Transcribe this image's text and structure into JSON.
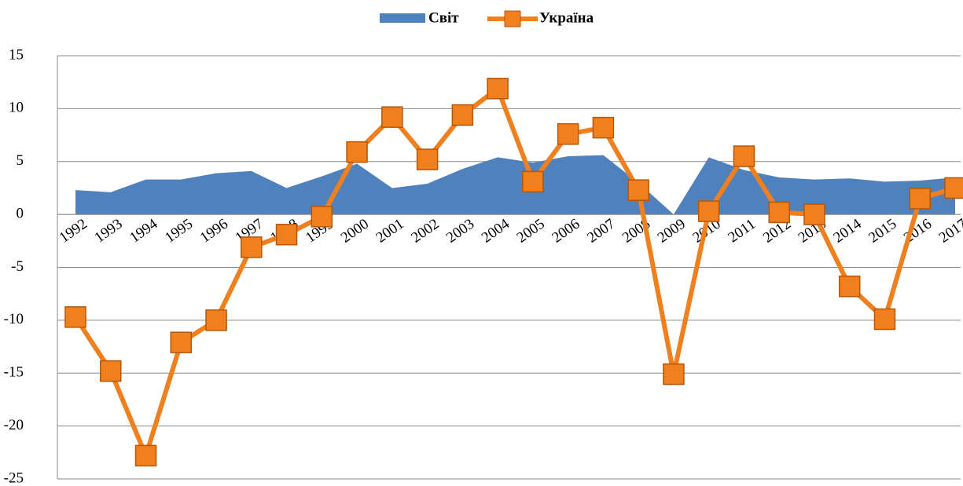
{
  "chart_data": {
    "type": "line",
    "categories": [
      "1992",
      "1993",
      "1994",
      "1995",
      "1996",
      "1997",
      "1998",
      "1999",
      "2000",
      "2001",
      "2002",
      "2003",
      "2004",
      "2005",
      "2006",
      "2007",
      "2008",
      "2009",
      "2010",
      "2011",
      "2012",
      "2013",
      "2014",
      "2015",
      "2016",
      "2017"
    ],
    "series": [
      {
        "name": "Світ",
        "type": "area",
        "color": "#4f81bd",
        "values": [
          2.3,
          2.1,
          3.3,
          3.3,
          3.9,
          4.1,
          2.5,
          3.6,
          4.8,
          2.5,
          2.9,
          4.3,
          5.4,
          4.9,
          5.5,
          5.6,
          3.0,
          0,
          5.4,
          4.2,
          3.5,
          3.3,
          3.4,
          3.1,
          3.2,
          3.5
        ]
      },
      {
        "name": "Україна",
        "type": "line",
        "color": "#f07f1e",
        "values": [
          -9.7,
          -14.8,
          -22.8,
          -12.1,
          -10.0,
          -3.1,
          -1.9,
          -0.2,
          5.9,
          9.2,
          5.2,
          9.4,
          11.9,
          3.1,
          7.6,
          8.2,
          2.3,
          -15.1,
          0.3,
          5.5,
          0.2,
          0.0,
          -6.8,
          -9.9,
          1.5,
          2.5
        ]
      }
    ],
    "ylim": [
      -25,
      15
    ],
    "yticks": [
      -25,
      -20,
      -15,
      -10,
      -5,
      0,
      5,
      10,
      15
    ],
    "grid": true,
    "legend": "top"
  }
}
